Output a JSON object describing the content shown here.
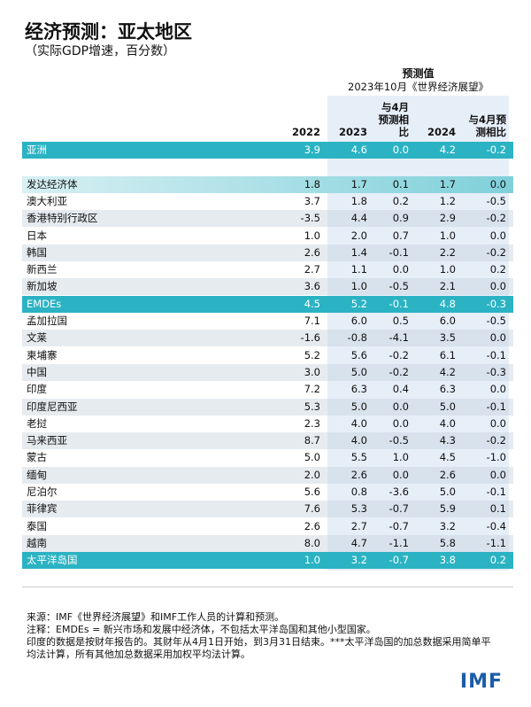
{
  "header": {
    "title": "经济预测：亚太地区",
    "subtitle": "（实际GDP增速，百分数）",
    "forecast_label": "预测值",
    "forecast_source": "2023年10月《世界经济展望》"
  },
  "table": {
    "columns": [
      "2022",
      "2023",
      "与4月预测相比",
      "2024",
      "与4月预测相比"
    ],
    "rows": [
      [
        "亚洲",
        "3.9",
        "4.6",
        "0.0",
        "4.2",
        "-0.2"
      ],
      [
        "发达经济体",
        "1.8",
        "1.7",
        "0.1",
        "1.7",
        "0.0"
      ],
      [
        "澳大利亚",
        "3.7",
        "1.8",
        "0.2",
        "1.2",
        "-0.5"
      ],
      [
        "香港特别行政区",
        "-3.5",
        "4.4",
        "0.9",
        "2.9",
        "-0.2"
      ],
      [
        "日本",
        "1.0",
        "2.0",
        "0.7",
        "1.0",
        "0.0"
      ],
      [
        "韩国",
        "2.6",
        "1.4",
        "-0.1",
        "2.2",
        "-0.2"
      ],
      [
        "新西兰",
        "2.7",
        "1.1",
        "0.0",
        "1.0",
        "0.2"
      ],
      [
        "新加坡",
        "3.6",
        "1.0",
        "-0.5",
        "2.1",
        "0.0"
      ],
      [
        "EMDEs",
        "4.5",
        "5.2",
        "-0.1",
        "4.8",
        "-0.3"
      ],
      [
        "孟加拉国",
        "7.1",
        "6.0",
        "0.5",
        "6.0",
        "-0.5"
      ],
      [
        "文莱",
        "-1.6",
        "-0.8",
        "-4.1",
        "3.5",
        "0.0"
      ],
      [
        "柬埔寨",
        "5.2",
        "5.6",
        "-0.2",
        "6.1",
        "-0.1"
      ],
      [
        "中国",
        "3.0",
        "5.0",
        "-0.2",
        "4.2",
        "-0.3"
      ],
      [
        "印度",
        "7.2",
        "6.3",
        "0.4",
        "6.3",
        "0.0"
      ],
      [
        "印度尼西亚",
        "5.3",
        "5.0",
        "0.0",
        "5.0",
        "-0.1"
      ],
      [
        "老挝",
        "2.3",
        "4.0",
        "0.0",
        "4.0",
        "0.0"
      ],
      [
        "马来西亚",
        "8.7",
        "4.0",
        "-0.5",
        "4.3",
        "-0.2"
      ],
      [
        "蒙古",
        "5.0",
        "5.5",
        "1.0",
        "4.5",
        "-1.0"
      ],
      [
        "缅甸",
        "2.0",
        "2.6",
        "0.0",
        "2.6",
        "0.0"
      ],
      [
        "尼泊尔",
        "5.6",
        "0.8",
        "-3.6",
        "5.0",
        "-0.1"
      ],
      [
        "菲律宾",
        "7.6",
        "5.3",
        "-0.7",
        "5.9",
        "0.1"
      ],
      [
        "泰国",
        "2.6",
        "2.7",
        "-0.7",
        "3.2",
        "-0.4"
      ],
      [
        "越南",
        "8.0",
        "4.7",
        "-1.1",
        "5.8",
        "-1.1"
      ],
      [
        "太平洋岛国",
        "1.0",
        "3.2",
        "-0.7",
        "3.8",
        "0.2"
      ]
    ]
  },
  "notes": [
    "来源：IMF《世界经济展望》和IMF工作人员的计算和预测。",
    "注释：EMDEs = 新兴市场和发展中经济体，不包括太平洋岛国和其他小型国家。",
    "印度的数据是按财年报告的。其财年从4月1日开始，到3月31日结束。***太平洋岛国的加总数据采用简单平均法计算，所有其他加总数据采用加权平均法计算。"
  ],
  "logo": "IMF"
}
